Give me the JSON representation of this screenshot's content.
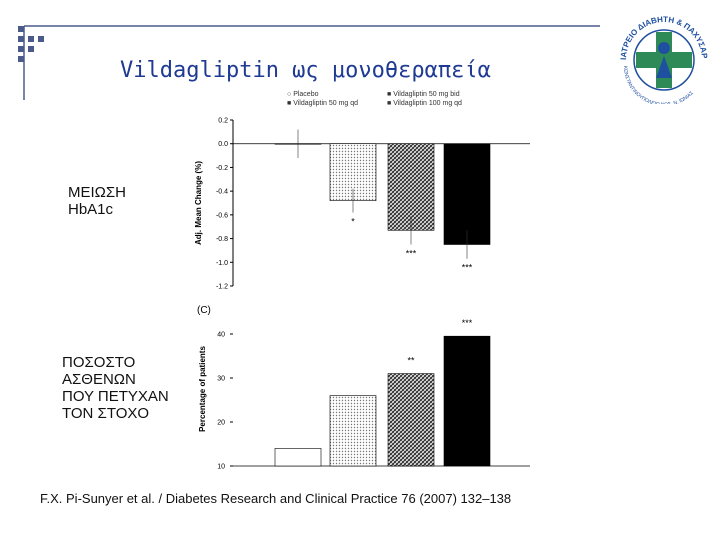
{
  "slide": {
    "title": "Vildagliptin ως μονοθεραπεία",
    "label_top": [
      "ΜΕΙΩΣΗ",
      "HbA1c"
    ],
    "label_bottom": [
      "ΠΟΣΟΣΤΟ",
      "ΑΣΘΕΝΩΝ",
      "ΠΟΥ ΠΕΤΥΧΑΝ",
      "ΤΟΝ ΣΤΟΧΟ"
    ],
    "citation": "F.X. Pi-Sunyer et al. / Diabetes Research and Clinical Practice 76 (2007) 132–138"
  },
  "logo": {
    "text_top": "ΙΑΤΡΕΙΟ ΔΙΑΒΗΤΗ & ΠΑΧΥΣΑΡΚΙΑΣ",
    "text_bottom": "ΚΩΝΣΤΑΝΤΙΝΟΥΠΟΛΕΙΟ ΝΟΣ. Ν. ΙΩΝΙΑΣ"
  },
  "legend": [
    {
      "label": "Placebo",
      "marker": "circle"
    },
    {
      "label": "Vildagliptin 50 mg bid",
      "marker": "square"
    },
    {
      "label": "Vildagliptin 50 mg qd",
      "marker": "square"
    },
    {
      "label": "Vildagliptin 100 mg qd",
      "marker": "square"
    }
  ],
  "chart_data": [
    {
      "type": "bar",
      "ylabel": "Adj. Mean Change (%)",
      "ylim": [
        -1.2,
        0.2
      ],
      "yticks": [
        "0.2",
        "0.0",
        "-0.2",
        "-0.4",
        "-0.6",
        "-0.8",
        "-1.0",
        "-1.2"
      ],
      "categories": [
        "Placebo",
        "Vildagliptin 50 mg qd",
        "Vildagliptin 50 mg bid",
        "Vildagliptin 100 mg qd"
      ],
      "values": [
        0.0,
        -0.48,
        -0.73,
        -0.85
      ],
      "error_low": [
        -0.12,
        -0.58,
        -0.85,
        -0.97
      ],
      "error_high": [
        0.12,
        -0.38,
        -0.61,
        -0.73
      ],
      "annotations": [
        "",
        "*",
        "***",
        "***"
      ]
    },
    {
      "type": "bar",
      "panel_label": "(C)",
      "ylabel": "Percentage of patients",
      "ylim": [
        10,
        45
      ],
      "yticks": [
        "40",
        "30",
        "20",
        "10"
      ],
      "categories": [
        "Placebo",
        "Vildagliptin 50 mg qd",
        "Vildagliptin 50 mg bid",
        "Vildagliptin 100 mg qd"
      ],
      "values": [
        14,
        26,
        31,
        39.5
      ],
      "annotations": [
        "",
        "",
        "**",
        "***"
      ]
    }
  ],
  "colors": {
    "title": "#1f3a93",
    "decor": "#4a5a8a",
    "logo_green": "#2e8b57",
    "logo_blue": "#1f4fa0"
  }
}
